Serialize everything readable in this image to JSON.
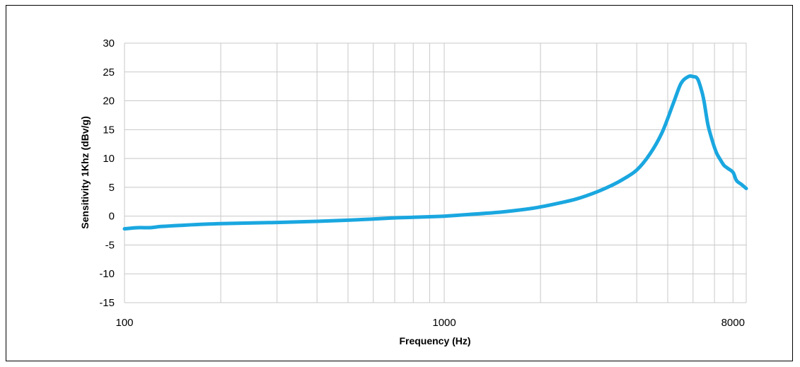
{
  "chart_data": {
    "type": "line",
    "title": "",
    "xlabel": "Frequency (Hz)",
    "ylabel": "Sensitivity 1Khz (dBv/g)",
    "x_scale": "log",
    "xlim": [
      100,
      8800
    ],
    "ylim": [
      -15,
      30
    ],
    "y_ticks": [
      30,
      25,
      20,
      15,
      10,
      5,
      0,
      -5,
      -10,
      -15
    ],
    "y_tick_labels": [
      "30",
      "25",
      "20",
      "15",
      "10",
      "5",
      "0",
      "-5",
      "-10",
      "-15"
    ],
    "x_tick_values": [
      100,
      1000,
      8000
    ],
    "x_tick_labels": [
      "100",
      "1000",
      "8000"
    ],
    "x_gridlines": [
      100,
      200,
      300,
      400,
      500,
      600,
      700,
      800,
      900,
      1000,
      2000,
      3000,
      4000,
      5000,
      6000,
      7000,
      8000
    ],
    "grid": true,
    "legend": "none",
    "series": [
      {
        "color": "#1aa7e0",
        "x": [
          100,
          110,
          120,
          130,
          150,
          200,
          300,
          400,
          500,
          600,
          700,
          800,
          900,
          1000,
          1200,
          1500,
          1800,
          2000,
          2300,
          2600,
          3000,
          3300,
          3600,
          4000,
          4400,
          4800,
          5200,
          5500,
          5800,
          6000,
          6200,
          6400,
          6500,
          6600,
          6700,
          6900,
          7100,
          7300,
          7500,
          7700,
          8000,
          8200,
          8500,
          8800
        ],
        "y": [
          -2.2,
          -2.0,
          -2.0,
          -1.8,
          -1.6,
          -1.3,
          -1.1,
          -0.9,
          -0.7,
          -0.5,
          -0.3,
          -0.2,
          -0.1,
          0.0,
          0.3,
          0.7,
          1.2,
          1.6,
          2.3,
          3.0,
          4.2,
          5.2,
          6.3,
          8.0,
          10.8,
          14.5,
          19.5,
          23.0,
          24.2,
          24.2,
          23.8,
          21.5,
          19.8,
          17.5,
          15.5,
          13.0,
          11.0,
          9.8,
          8.8,
          8.3,
          7.6,
          6.2,
          5.5,
          4.8
        ]
      }
    ]
  }
}
